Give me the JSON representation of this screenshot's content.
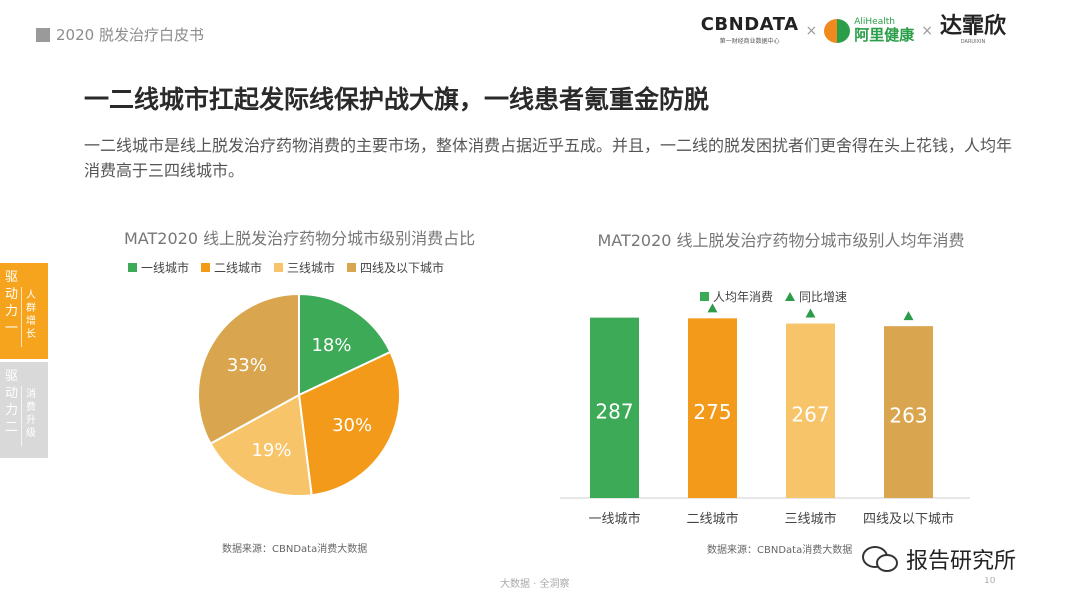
{
  "header": {
    "label": "2020 脱发治疗白皮书"
  },
  "logos": {
    "cbn": "CBNDATA",
    "cbn_sub": "第一财经商业数据中心",
    "sep": "×",
    "ali_en": "AliHealth",
    "ali_cn": "阿里健康",
    "darui": "达霏欣",
    "darui_sub": "DARUIXIN"
  },
  "title": "一二线城市扛起发际线保护战大旗，一线患者氪重金防脱",
  "description": "一二线城市是线上脱发治疗药物消费的主要市场，整体消费占据近乎五成。并且，一二线的脱发困扰者们更舍得在头上花钱，人均年消费高于三四线城市。",
  "side_tabs": [
    {
      "main": "驱动力一",
      "sub": "人群增长"
    },
    {
      "main": "驱动力二",
      "sub": "消费升级"
    }
  ],
  "chart_data": [
    {
      "type": "pie",
      "title": "MAT2020 线上脱发治疗药物分城市级别消费占比",
      "categories": [
        "一线城市",
        "二线城市",
        "三线城市",
        "四线及以下城市"
      ],
      "values": [
        18,
        30,
        19,
        33
      ],
      "value_labels": [
        "18%",
        "30%",
        "19%",
        "33%"
      ],
      "colors": [
        "#3daa57",
        "#f49a1a",
        "#f7c46a",
        "#d9a54e"
      ],
      "legend_position": "top"
    },
    {
      "type": "bar",
      "title": "MAT2020 线上脱发治疗药物分城市级别人均年消费",
      "categories": [
        "一线城市",
        "二线城市",
        "三线城市",
        "四线及以下城市"
      ],
      "series": [
        {
          "name": "人均年消费",
          "values": [
            287,
            275,
            267,
            263
          ]
        },
        {
          "name": "同比增速",
          "values": [
            null,
            "up",
            "up",
            "up"
          ]
        }
      ],
      "value_labels": [
        "287",
        "275",
        "267",
        "263"
      ],
      "colors": [
        "#3daa57",
        "#f49a1a",
        "#f7c46a",
        "#d9a54e"
      ],
      "marker_color": "#2e9b4a",
      "ylim": [
        0,
        300
      ],
      "legend_position": "top"
    }
  ],
  "legend_labels": {
    "pie": [
      "一线城市",
      "二线城市",
      "三线城市",
      "四线及以下城市"
    ],
    "bar": [
      "人均年消费",
      "同比增速"
    ]
  },
  "sources": {
    "left": "数据来源：CBNData消费大数据",
    "right": "数据来源：CBNData消费大数据"
  },
  "footer": {
    "center": "大数据 · 全洞察",
    "page": "10"
  },
  "watermark_badge": {
    "text": "报告研究所",
    "icon": "wechat-icon"
  }
}
